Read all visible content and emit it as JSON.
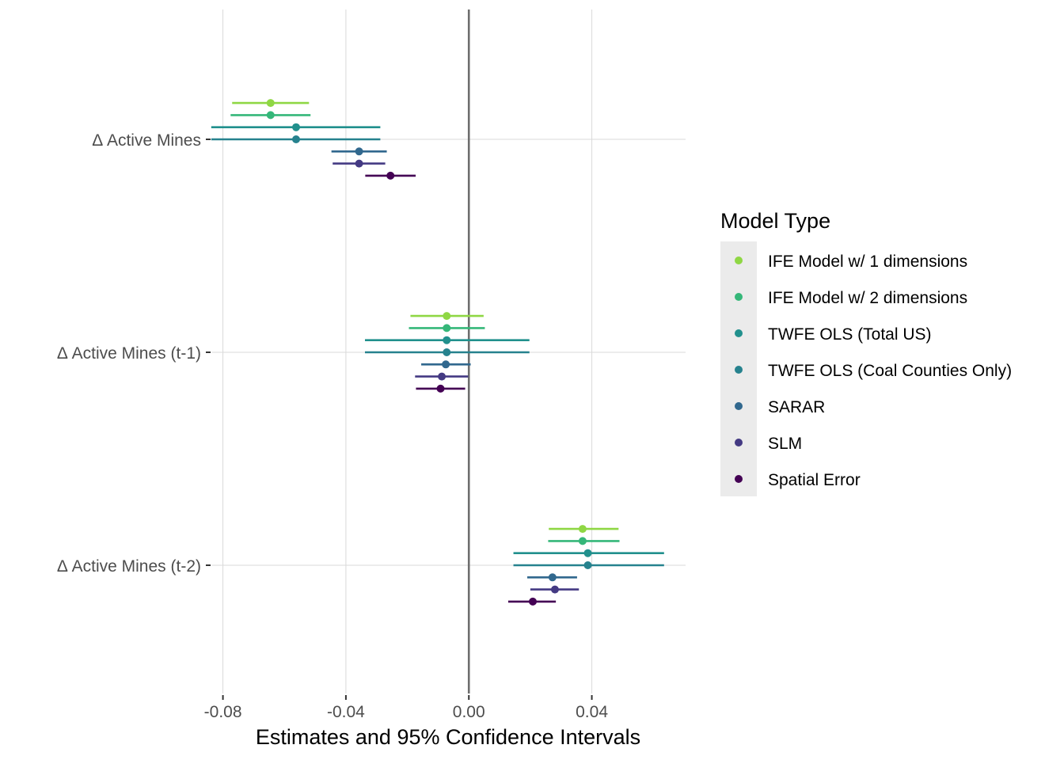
{
  "chart_data": {
    "type": "scatter",
    "xlabel": "Estimates and 95% Confidence Intervals",
    "ylabel": "",
    "xlim": [
      -0.0835,
      0.0705
    ],
    "x_ticks": [
      "-0.08",
      "-0.04",
      "0.00",
      "0.04"
    ],
    "x_tick_values": [
      -0.08,
      -0.04,
      0.0,
      0.04
    ],
    "grid": true,
    "reference_line_x": 0,
    "categories": [
      "Δ Active Mines",
      "Δ Active Mines (t-1)",
      "Δ Active Mines (t-2)"
    ],
    "legend": {
      "title": "Model Type",
      "placement": "right"
    },
    "series": [
      {
        "name": "IFE Model w/ 1 dimensions",
        "color": "#8fd744",
        "estimates": [
          -0.0645,
          -0.0072,
          0.037
        ],
        "ci_low": [
          -0.077,
          -0.019,
          0.026
        ],
        "ci_high": [
          -0.052,
          0.0048,
          0.0487
        ]
      },
      {
        "name": "IFE Model w/ 2 dimensions",
        "color": "#35b779",
        "estimates": [
          -0.0645,
          -0.0072,
          0.037
        ],
        "ci_low": [
          -0.0775,
          -0.0195,
          0.0258
        ],
        "ci_high": [
          -0.0515,
          0.0052,
          0.049
        ]
      },
      {
        "name": "TWFE OLS (Total US)",
        "color": "#21908d",
        "estimates": [
          -0.0562,
          -0.0072,
          0.0387
        ],
        "ci_low": [
          -0.0838,
          -0.0338,
          0.0145
        ],
        "ci_high": [
          -0.0288,
          0.0197,
          0.0635
        ]
      },
      {
        "name": "TWFE OLS (Coal Counties Only)",
        "color": "#26828e",
        "estimates": [
          -0.0562,
          -0.0072,
          0.0387
        ],
        "ci_low": [
          -0.0838,
          -0.0338,
          0.0145
        ],
        "ci_high": [
          -0.0288,
          0.0197,
          0.0635
        ]
      },
      {
        "name": "SARAR",
        "color": "#31688e",
        "estimates": [
          -0.0357,
          -0.0075,
          0.0272
        ],
        "ci_low": [
          -0.0447,
          -0.0155,
          0.019
        ],
        "ci_high": [
          -0.0267,
          0.0006,
          0.0352
        ]
      },
      {
        "name": "SLM",
        "color": "#443a83",
        "estimates": [
          -0.0357,
          -0.0088,
          0.028
        ],
        "ci_low": [
          -0.0443,
          -0.0175,
          0.02
        ],
        "ci_high": [
          -0.0272,
          -0.0002,
          0.0358
        ]
      },
      {
        "name": "Spatial Error",
        "color": "#440154",
        "estimates": [
          -0.0255,
          -0.0092,
          0.0208
        ],
        "ci_low": [
          -0.0337,
          -0.0172,
          0.0128
        ],
        "ci_high": [
          -0.0173,
          -0.0012,
          0.0283
        ]
      }
    ]
  }
}
